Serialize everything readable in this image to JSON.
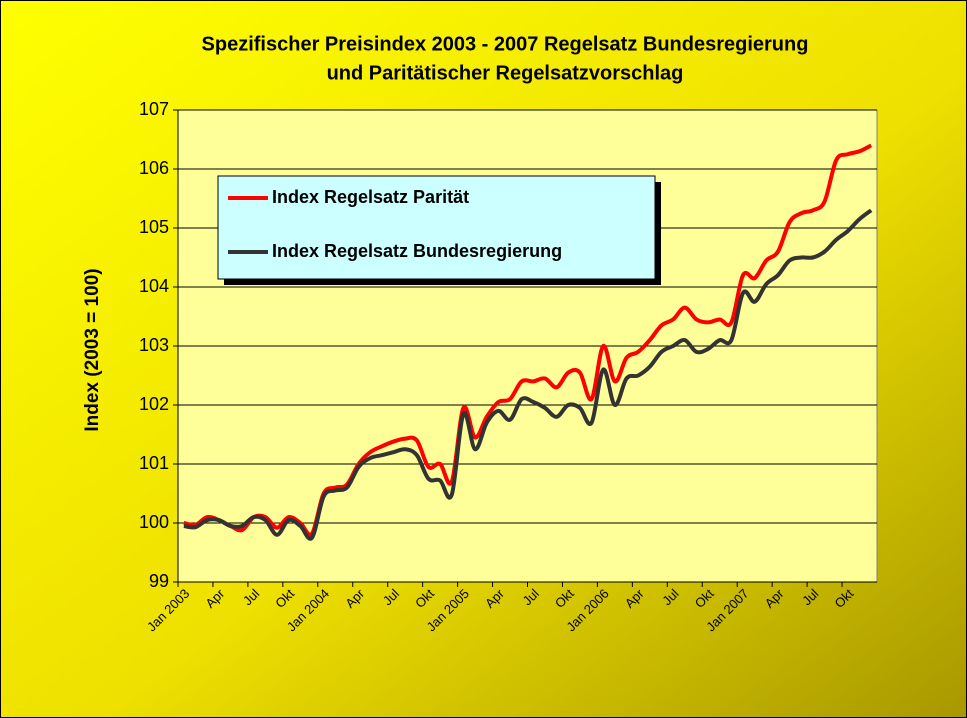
{
  "chart_data": {
    "type": "line",
    "title": "Spezifischer Preisindex 2003 - 2007 Regelsatz Bundesregierung",
    "subtitle": "und Paritätischer Regelsatzvorschlag",
    "y_label": "Index (2003 = 100)",
    "categories": [
      "Jan 2003",
      null,
      null,
      "Apr",
      null,
      null,
      "Jul",
      null,
      null,
      "Okt",
      null,
      null,
      "Jan 2004",
      null,
      null,
      "Apr",
      null,
      null,
      "Jul",
      null,
      null,
      "Okt",
      null,
      null,
      "Jan 2005",
      null,
      null,
      "Apr",
      null,
      null,
      "Jul",
      null,
      null,
      "Okt",
      null,
      null,
      "Jan 2006",
      null,
      null,
      "Apr",
      null,
      null,
      "Jul",
      null,
      null,
      "Okt",
      null,
      null,
      "Jan 2007",
      null,
      null,
      "Apr",
      null,
      null,
      "Jul",
      null,
      null,
      "Okt",
      null,
      null
    ],
    "series": [
      {
        "name": "Index Regelsatz Parität",
        "color": "#ff0000",
        "values": [
          100.0,
          99.97,
          100.1,
          100.05,
          99.95,
          99.88,
          100.1,
          100.1,
          99.92,
          100.1,
          100.0,
          99.82,
          100.5,
          100.6,
          100.65,
          101.0,
          101.2,
          101.3,
          101.38,
          101.43,
          101.4,
          100.95,
          101.0,
          100.7,
          101.95,
          101.45,
          101.8,
          102.05,
          102.1,
          102.4,
          102.4,
          102.45,
          102.3,
          102.55,
          102.55,
          102.1,
          103.0,
          102.4,
          102.8,
          102.9,
          103.1,
          103.35,
          103.45,
          103.65,
          103.45,
          103.4,
          103.45,
          103.4,
          104.2,
          104.15,
          104.45,
          104.6,
          105.1,
          105.25,
          105.3,
          105.45,
          106.15,
          106.25,
          106.3,
          106.4
        ]
      },
      {
        "name": "Index Regelsatz Bundesregierung",
        "color": "#333333",
        "values": [
          99.95,
          99.93,
          100.05,
          100.05,
          99.95,
          99.95,
          100.1,
          100.05,
          99.8,
          100.05,
          99.95,
          99.75,
          100.45,
          100.55,
          100.6,
          100.95,
          101.1,
          101.15,
          101.2,
          101.25,
          101.15,
          100.75,
          100.72,
          100.48,
          101.85,
          101.25,
          101.7,
          101.9,
          101.75,
          102.1,
          102.05,
          101.95,
          101.8,
          102.0,
          101.95,
          101.7,
          102.6,
          102.0,
          102.45,
          102.5,
          102.65,
          102.9,
          103.0,
          103.1,
          102.9,
          102.95,
          103.1,
          103.1,
          103.9,
          103.75,
          104.05,
          104.2,
          104.45,
          104.5,
          104.5,
          104.6,
          104.8,
          104.95,
          105.15,
          105.3
        ]
      }
    ],
    "ylim": [
      99,
      107
    ],
    "yticks": [
      99,
      100,
      101,
      102,
      103,
      104,
      105,
      106,
      107
    ],
    "grid": true
  }
}
